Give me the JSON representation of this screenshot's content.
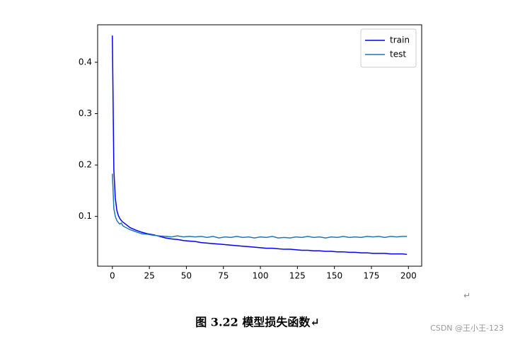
{
  "chart_data": {
    "type": "line",
    "x": [
      0,
      1,
      2,
      3,
      4,
      5,
      6,
      7,
      8,
      12,
      16,
      20,
      24,
      28,
      32,
      36,
      40,
      44,
      48,
      52,
      56,
      60,
      64,
      68,
      72,
      76,
      80,
      84,
      88,
      92,
      96,
      100,
      104,
      108,
      112,
      116,
      120,
      124,
      128,
      132,
      136,
      140,
      144,
      148,
      152,
      156,
      160,
      164,
      168,
      172,
      176,
      180,
      184,
      188,
      192,
      196,
      199
    ],
    "series": [
      {
        "name": "train",
        "color": "#0000ff",
        "values": [
          0.452,
          0.19,
          0.135,
          0.112,
          0.102,
          0.096,
          0.092,
          0.089,
          0.087,
          0.078,
          0.073,
          0.069,
          0.066,
          0.064,
          0.061,
          0.058,
          0.056,
          0.055,
          0.053,
          0.052,
          0.051,
          0.049,
          0.048,
          0.047,
          0.046,
          0.045,
          0.044,
          0.043,
          0.042,
          0.041,
          0.04,
          0.039,
          0.038,
          0.038,
          0.037,
          0.036,
          0.036,
          0.035,
          0.034,
          0.034,
          0.033,
          0.033,
          0.032,
          0.032,
          0.031,
          0.031,
          0.03,
          0.03,
          0.029,
          0.029,
          0.028,
          0.028,
          0.028,
          0.027,
          0.027,
          0.027,
          0.026
        ]
      },
      {
        "name": "test",
        "color": "#1f77b4",
        "values": [
          0.183,
          0.115,
          0.1,
          0.092,
          0.088,
          0.085,
          0.087,
          0.082,
          0.08,
          0.074,
          0.07,
          0.066,
          0.065,
          0.063,
          0.062,
          0.061,
          0.06,
          0.062,
          0.06,
          0.061,
          0.06,
          0.061,
          0.059,
          0.061,
          0.058,
          0.06,
          0.059,
          0.061,
          0.059,
          0.06,
          0.058,
          0.06,
          0.059,
          0.061,
          0.058,
          0.059,
          0.058,
          0.06,
          0.059,
          0.061,
          0.059,
          0.06,
          0.058,
          0.06,
          0.059,
          0.061,
          0.059,
          0.06,
          0.059,
          0.061,
          0.06,
          0.061,
          0.059,
          0.061,
          0.06,
          0.061,
          0.061
        ]
      }
    ],
    "xlim": [
      -9.95,
      208.95
    ],
    "xticks": [
      0,
      25,
      50,
      75,
      100,
      125,
      150,
      175,
      200
    ],
    "ylim": [
      0.003,
      0.473
    ],
    "yticks": [
      0.1,
      0.2,
      0.3,
      0.4
    ],
    "legend": "upper right"
  },
  "return_mark": "↵",
  "caption": "图 3.22 模型损失函数↵",
  "watermark": "CSDN @王小王-123"
}
